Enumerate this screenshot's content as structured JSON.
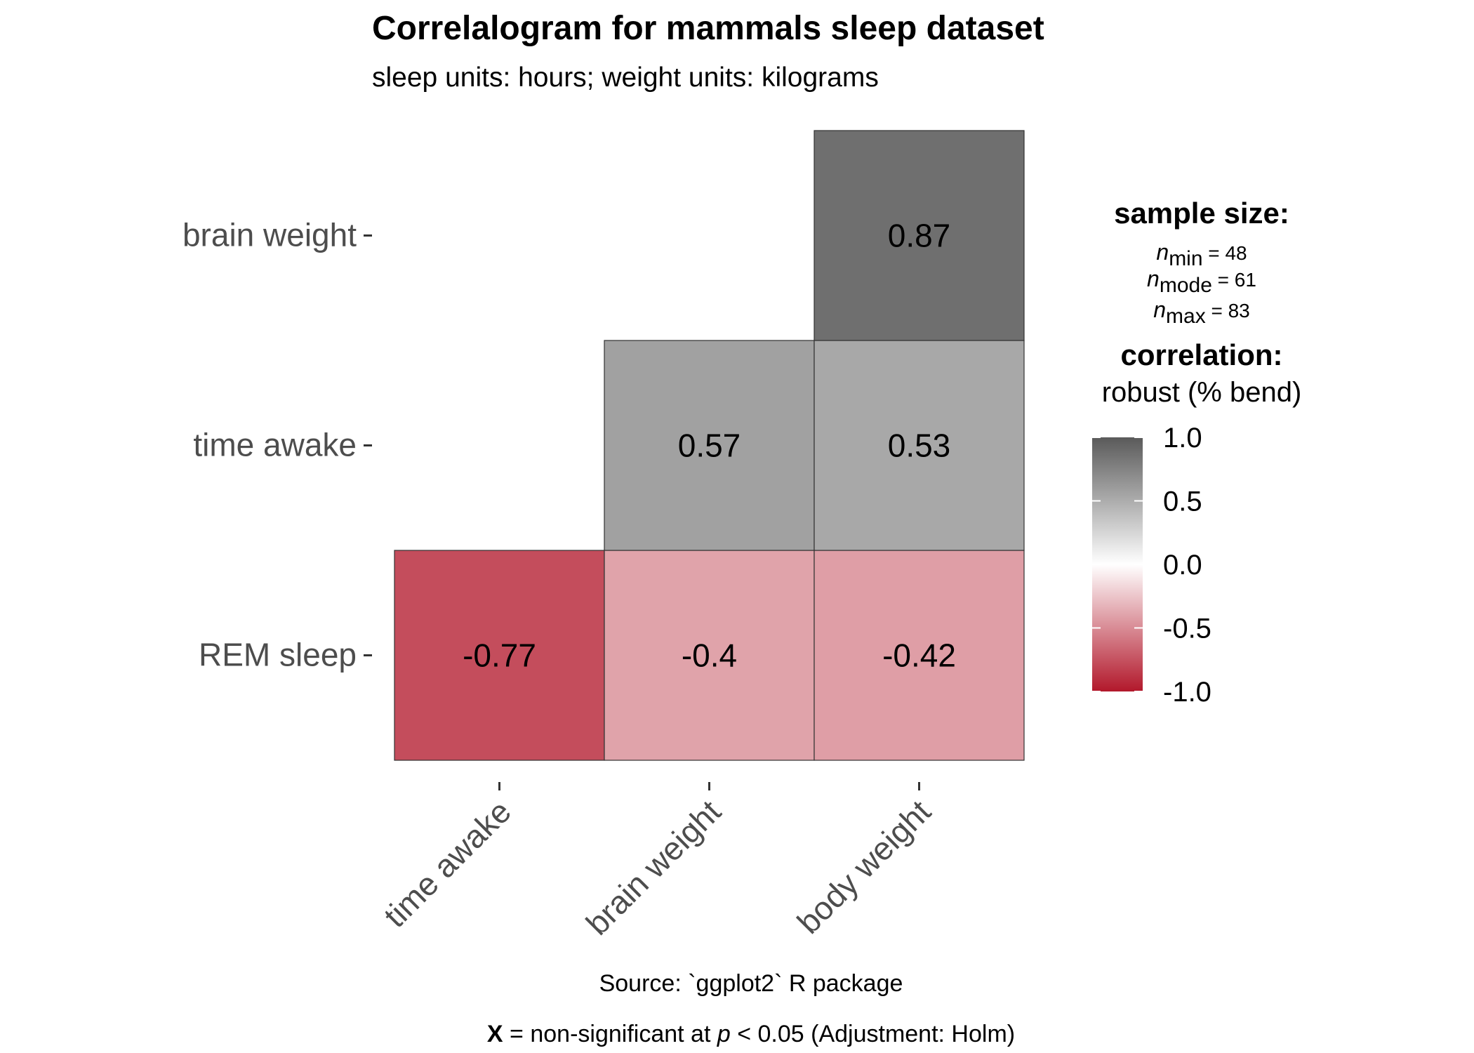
{
  "chart_data": {
    "type": "heatmap",
    "title": "Correlalogram for mammals sleep dataset",
    "subtitle": "sleep units: hours; weight units: kilograms",
    "x_categories": [
      "time awake",
      "brain weight",
      "body weight"
    ],
    "y_categories": [
      "REM sleep",
      "time awake",
      "brain weight"
    ],
    "cells": [
      {
        "x": "time awake",
        "y": "REM sleep",
        "value": -0.77,
        "label": "-0.77"
      },
      {
        "x": "brain weight",
        "y": "REM sleep",
        "value": -0.4,
        "label": "-0.4"
      },
      {
        "x": "body weight",
        "y": "REM sleep",
        "value": -0.42,
        "label": "-0.42"
      },
      {
        "x": "brain weight",
        "y": "time awake",
        "value": 0.57,
        "label": "0.57"
      },
      {
        "x": "body weight",
        "y": "time awake",
        "value": 0.53,
        "label": "0.53"
      },
      {
        "x": "body weight",
        "y": "brain weight",
        "value": 0.87,
        "label": "0.87"
      }
    ],
    "legend": {
      "sample_size_title": "sample size:",
      "n_symbol": "n",
      "sample_sizes": [
        {
          "sub": "min",
          "text": " = 48"
        },
        {
          "sub": "mode",
          "text": " = 61"
        },
        {
          "sub": "max",
          "text": " = 83"
        }
      ],
      "correlation_title": "correlation:",
      "correlation_subtitle": "robust (% bend)",
      "scale_range": [
        -1,
        1
      ],
      "scale_ticks": [
        {
          "value": 1.0,
          "label": "1.0"
        },
        {
          "value": 0.5,
          "label": "0.5"
        },
        {
          "value": 0.0,
          "label": "0.0"
        },
        {
          "value": -0.5,
          "label": "-0.5"
        },
        {
          "value": -1.0,
          "label": "-1.0"
        }
      ],
      "colors": {
        "high": "#5a5a5a",
        "mid": "#ffffff",
        "low": "#b2182b"
      },
      "placement": "right"
    },
    "caption": {
      "source": "Source: `ggplot2` R package",
      "note_symbol": "X",
      "note_text_1": " = non-significant at ",
      "note_p": "p",
      "note_text_2": " < 0.05 (Adjustment: Holm)"
    }
  }
}
